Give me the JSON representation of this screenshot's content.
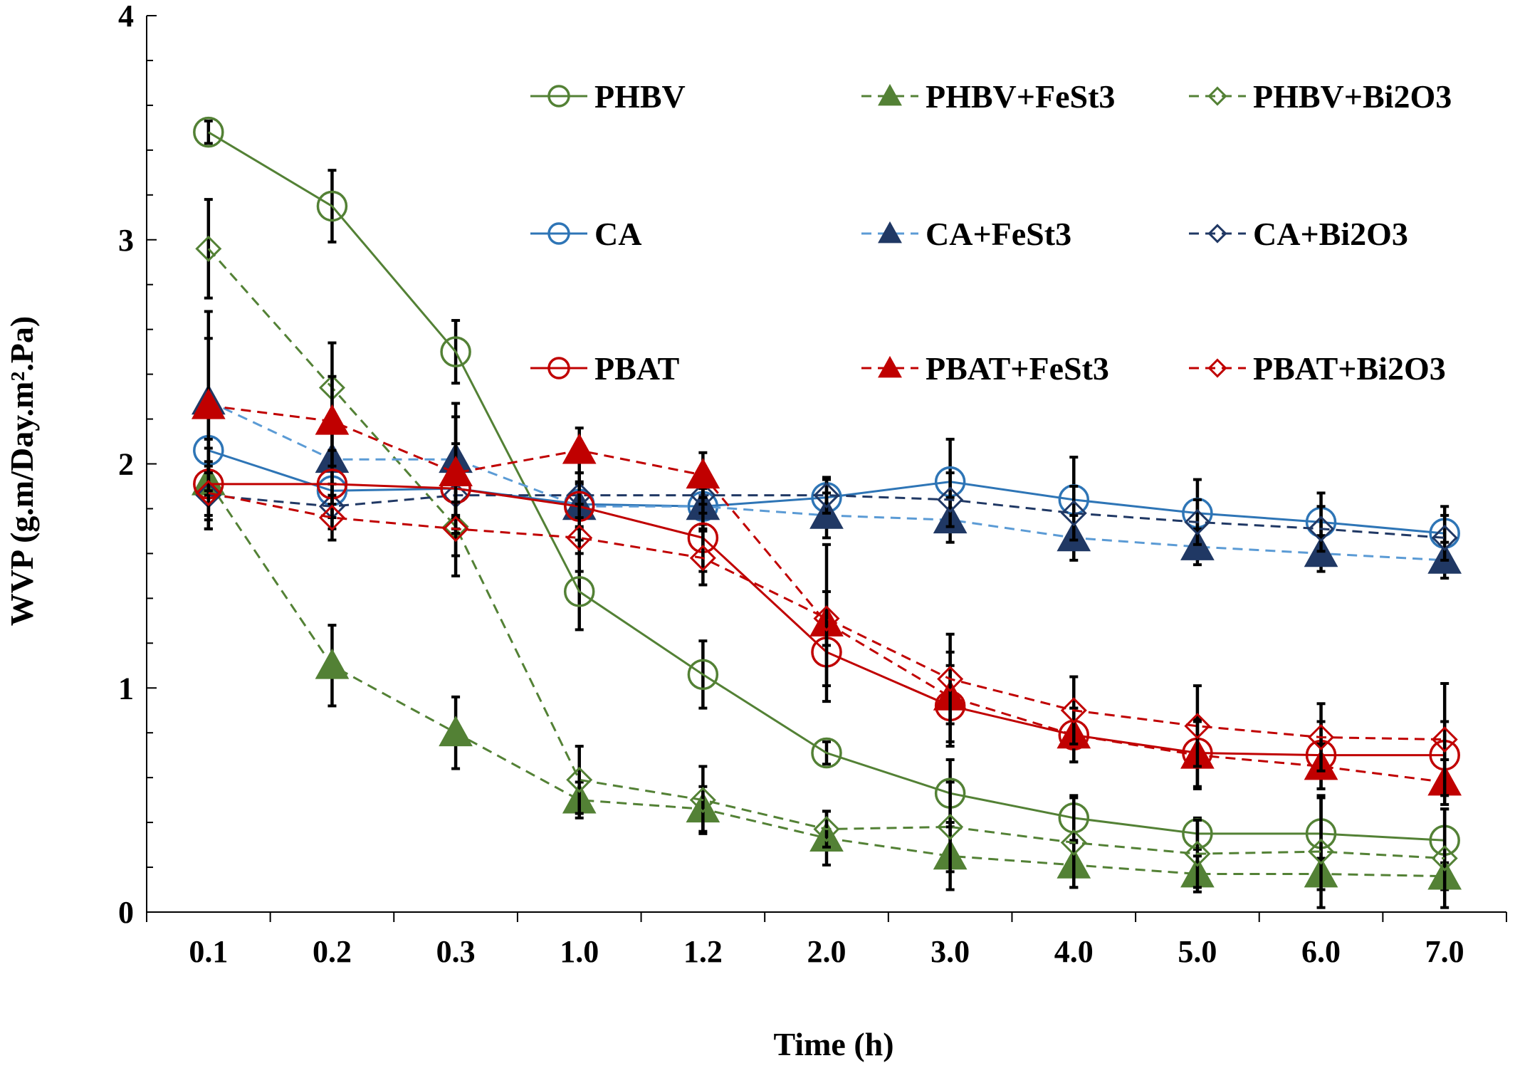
{
  "chart_data": {
    "type": "line",
    "xlabel": "Time (h)",
    "ylabel": "WVP (g.m/Day.m².Pa)",
    "ylim": [
      0,
      4
    ],
    "yticks": [
      "0",
      "1",
      "2",
      "3",
      "4"
    ],
    "categories": [
      "0.1",
      "0.2",
      "0.3",
      "1.0",
      "1.2",
      "2.0",
      "3.0",
      "4.0",
      "5.0",
      "6.0",
      "7.0"
    ],
    "grid": false,
    "legend_position": "top",
    "series": [
      {
        "name": "PHBV",
        "color": "#538135",
        "marker": "circle-open",
        "dash": "solid",
        "values": [
          3.48,
          3.15,
          2.5,
          1.43,
          1.06,
          0.71,
          0.53,
          0.42,
          0.35,
          0.35,
          0.32
        ],
        "errors": [
          0.05,
          0.16,
          0.14,
          0.17,
          0.15,
          0.05,
          0.15,
          0.1,
          0.07,
          0.16,
          0.14
        ]
      },
      {
        "name": "PHBV+FeSt3",
        "color": "#538135",
        "marker": "triangle-filled",
        "dash": "dashed",
        "values": [
          1.92,
          1.1,
          0.8,
          0.5,
          0.46,
          0.33,
          0.25,
          0.21,
          0.17,
          0.17,
          0.16
        ],
        "errors": [
          0.15,
          0.18,
          0.16,
          0.08,
          0.1,
          0.12,
          0.15,
          0.1,
          0.08,
          0.07,
          0.06
        ]
      },
      {
        "name": "PHBV+Bi2O3",
        "color": "#538135",
        "marker": "diamond-open",
        "dash": "dashed",
        "values": [
          2.96,
          2.34,
          1.72,
          0.59,
          0.5,
          0.37,
          0.38,
          0.31,
          0.26,
          0.27,
          0.24
        ],
        "errors": [
          0.22,
          0.2,
          0.22,
          0.15,
          0.15,
          0.08,
          0.2,
          0.2,
          0.15,
          0.25,
          0.22
        ]
      },
      {
        "name": "CA",
        "color": "#2E75B6",
        "marker": "circle-open",
        "dash": "solid",
        "values": [
          2.06,
          1.88,
          1.89,
          1.82,
          1.81,
          1.85,
          1.92,
          1.84,
          1.78,
          1.74,
          1.69
        ],
        "errors": [
          0.2,
          0.12,
          0.12,
          0.1,
          0.1,
          0.08,
          0.19,
          0.19,
          0.15,
          0.13,
          0.12
        ]
      },
      {
        "name": "CA+FeSt3",
        "color": "#5B9BD5",
        "marker": "triangle-filled",
        "dash": "dashed",
        "markerColor": "#203864",
        "values": [
          2.28,
          2.02,
          2.02,
          1.81,
          1.81,
          1.77,
          1.75,
          1.67,
          1.63,
          1.6,
          1.57
        ],
        "errors": [
          0.4,
          0.2,
          0.25,
          0.1,
          0.08,
          0.1,
          0.1,
          0.1,
          0.08,
          0.08,
          0.08
        ]
      },
      {
        "name": "CA+Bi2O3",
        "color": "#203864",
        "marker": "diamond-open",
        "dash": "dashed",
        "values": [
          1.86,
          1.81,
          1.86,
          1.86,
          1.86,
          1.86,
          1.84,
          1.78,
          1.74,
          1.71,
          1.67
        ],
        "errors": [
          0.15,
          0.1,
          0.1,
          0.1,
          0.08,
          0.08,
          0.12,
          0.12,
          0.1,
          0.1,
          0.1
        ]
      },
      {
        "name": "PBAT",
        "color": "#C00000",
        "marker": "circle-open",
        "dash": "solid",
        "values": [
          1.91,
          1.91,
          1.89,
          1.81,
          1.67,
          1.16,
          0.92,
          0.79,
          0.71,
          0.7,
          0.7
        ],
        "errors": [
          0.2,
          0.15,
          0.2,
          0.15,
          0.15,
          0.15,
          0.18,
          0.12,
          0.15,
          0.15,
          0.15
        ]
      },
      {
        "name": "PBAT+FeSt3",
        "color": "#C00000",
        "marker": "triangle-filled",
        "dash": "dashed",
        "values": [
          2.26,
          2.19,
          1.96,
          2.06,
          1.95,
          1.29,
          0.96,
          0.79,
          0.7,
          0.65,
          0.58
        ],
        "errors": [
          0.3,
          0.2,
          0.25,
          0.1,
          0.1,
          0.35,
          0.2,
          0.12,
          0.15,
          0.1,
          0.1
        ]
      },
      {
        "name": "PBAT+Bi2O3",
        "color": "#C00000",
        "marker": "diamond-open",
        "dash": "dashed",
        "values": [
          1.87,
          1.76,
          1.71,
          1.67,
          1.58,
          1.31,
          1.04,
          0.9,
          0.83,
          0.78,
          0.77
        ],
        "errors": [
          0.12,
          0.1,
          0.12,
          0.15,
          0.12,
          0.12,
          0.2,
          0.15,
          0.18,
          0.15,
          0.25
        ]
      }
    ]
  }
}
